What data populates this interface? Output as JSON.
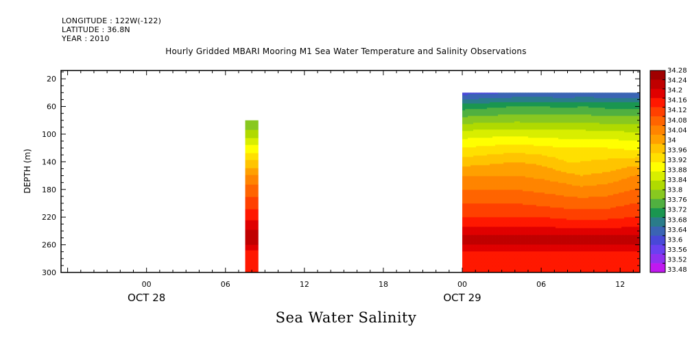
{
  "header": {
    "longitude": "LONGITUDE : 122W(-122)",
    "latitude": "LATITUDE : 36.8N",
    "year": "YEAR : 2010"
  },
  "title": "Hourly Gridded MBARI Mooring M1 Sea Water Temperature and Salinity Observations",
  "bottom_title": "Sea Water Salinity",
  "chart_data": {
    "type": "heatmap",
    "title": "Hourly Gridded MBARI Mooring M1 Sea Water Temperature and Salinity Observations",
    "subtitle": "Sea Water Salinity",
    "xlabel": "",
    "ylabel": "DEPTH (m)",
    "x_units": "hours since 2010-10-28 00:00",
    "xlim": [
      -6.5,
      37.5
    ],
    "ylim": [
      300,
      8
    ],
    "y_ticks": [
      20,
      60,
      100,
      140,
      180,
      220,
      260,
      300
    ],
    "x_ticks": [
      {
        "hour": 0,
        "label": "00"
      },
      {
        "hour": 6,
        "label": "06"
      },
      {
        "hour": 12,
        "label": "12"
      },
      {
        "hour": 18,
        "label": "18"
      },
      {
        "hour": 24,
        "label": "00"
      },
      {
        "hour": 30,
        "label": "06"
      },
      {
        "hour": 36,
        "label": "12"
      }
    ],
    "date_labels": [
      {
        "hour": 0,
        "label": "OCT 28"
      },
      {
        "hour": 24,
        "label": "OCT 29"
      }
    ],
    "colorbar_levels": [
      "34.28",
      "34.24",
      "34.2",
      "34.16",
      "34.12",
      "34.08",
      "34.04",
      "34",
      "33.96",
      "33.92",
      "33.88",
      "33.84",
      "33.8",
      "33.76",
      "33.72",
      "33.68",
      "33.64",
      "33.6",
      "33.56",
      "33.52",
      "33.48"
    ],
    "colorbar_colors": [
      "#a00000",
      "#c00000",
      "#e00000",
      "#ff1800",
      "#ff4000",
      "#ff6400",
      "#ff8400",
      "#ffa000",
      "#ffc400",
      "#ffe000",
      "#ffff00",
      "#d8ee00",
      "#b0da00",
      "#88c820",
      "#50b040",
      "#1a9650",
      "#2a7c8a",
      "#3a64b4",
      "#4848d8",
      "#6a40f0",
      "#9030f0",
      "#c018f0"
    ],
    "depths": [
      40,
      60,
      80,
      100,
      120,
      140,
      160,
      180,
      200,
      220,
      240,
      250,
      260,
      270,
      280,
      300
    ],
    "profile_day1": {
      "hour_start": 7.5,
      "hour_end": 8.5,
      "depth_top": 80,
      "values": [
        null,
        null,
        33.76,
        33.82,
        33.9,
        33.97,
        34.05,
        34.1,
        34.14,
        34.19,
        34.25,
        34.28,
        34.24,
        34.18,
        34.17,
        34.17
      ]
    },
    "section_day2": {
      "hour_start": 24,
      "hour_end": 39,
      "depth_top": 40,
      "profiles": [
        {
          "hour": 24,
          "values": [
            33.58,
            33.7,
            33.78,
            33.86,
            33.92,
            33.98,
            34.04,
            34.08,
            34.12,
            34.16,
            34.22,
            34.26,
            34.24,
            34.2,
            34.18,
            34.18
          ]
        },
        {
          "hour": 28,
          "values": [
            33.6,
            33.72,
            33.79,
            33.87,
            33.94,
            34.0,
            34.04,
            34.08,
            34.12,
            34.16,
            34.22,
            34.26,
            34.24,
            34.2,
            34.18,
            34.18
          ]
        },
        {
          "hour": 30,
          "values": [
            33.6,
            33.72,
            33.79,
            33.86,
            33.93,
            33.99,
            34.03,
            34.07,
            34.11,
            34.16,
            34.22,
            34.26,
            34.24,
            34.2,
            34.18,
            34.18
          ]
        },
        {
          "hour": 32,
          "values": [
            33.6,
            33.71,
            33.79,
            33.86,
            33.92,
            33.96,
            34.01,
            34.06,
            34.1,
            34.15,
            34.21,
            34.26,
            34.24,
            34.2,
            34.18,
            34.18
          ]
        },
        {
          "hour": 33,
          "values": [
            33.6,
            33.72,
            33.79,
            33.86,
            33.92,
            33.96,
            34.0,
            34.05,
            34.1,
            34.15,
            34.21,
            34.26,
            34.24,
            34.2,
            34.18,
            34.18
          ]
        },
        {
          "hour": 35,
          "values": [
            33.6,
            33.71,
            33.78,
            33.86,
            33.92,
            33.97,
            34.01,
            34.06,
            34.1,
            34.15,
            34.21,
            34.26,
            34.24,
            34.2,
            34.18,
            34.18
          ]
        },
        {
          "hour": 37,
          "values": [
            33.6,
            33.71,
            33.78,
            33.85,
            33.91,
            33.98,
            34.04,
            34.08,
            34.12,
            34.16,
            34.22,
            34.26,
            34.24,
            34.2,
            34.18,
            34.18
          ]
        },
        {
          "hour": 39,
          "values": [
            33.6,
            33.71,
            33.78,
            33.85,
            33.92,
            33.99,
            34.05,
            34.09,
            34.13,
            34.16,
            34.22,
            34.26,
            34.24,
            34.2,
            34.18,
            34.18
          ]
        }
      ]
    }
  }
}
